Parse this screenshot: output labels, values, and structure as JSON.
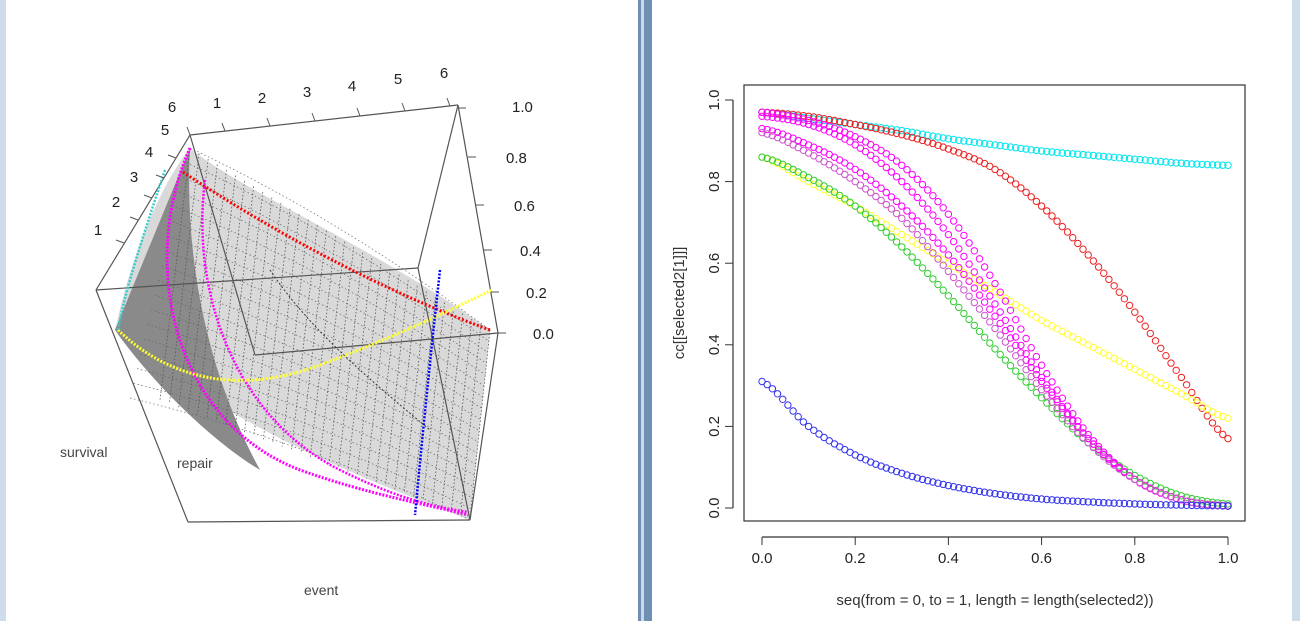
{
  "left_panel": {
    "type": "3d-surface",
    "axis_labels": {
      "survival": "survival",
      "repair": "repair",
      "event": "event"
    },
    "top_ticks": [
      "1",
      "2",
      "3",
      "4",
      "5",
      "6"
    ],
    "left_ticks": [
      "1",
      "2",
      "3",
      "4",
      "5",
      "6"
    ],
    "z_ticks": [
      "0.0",
      "0.2",
      "0.4",
      "0.6",
      "0.8",
      "1.0"
    ],
    "curve_colors": {
      "surface": "#777777",
      "red": "#ff0000",
      "magenta": "#ff00ff",
      "yellow": "#ffff33",
      "blue": "#0000ff",
      "cyan": "#33cccc"
    }
  },
  "chart_data": {
    "type": "scatter",
    "xlabel": "seq(from = 0, to = 1, length = length(selected2))",
    "ylabel": "cc[[selected2[1]]]",
    "xlim": [
      0,
      1
    ],
    "ylim": [
      0,
      1
    ],
    "x_ticks": [
      "0.0",
      "0.2",
      "0.4",
      "0.6",
      "0.8",
      "1.0"
    ],
    "y_ticks": [
      "0.0",
      "0.2",
      "0.4",
      "0.6",
      "0.8",
      "1.0"
    ],
    "marker": "open-circle",
    "series": [
      {
        "color": "#00e5ee",
        "x": [
          0,
          0.1,
          0.2,
          0.3,
          0.4,
          0.5,
          0.6,
          0.7,
          0.8,
          0.9,
          1.0
        ],
        "values": [
          0.97,
          0.955,
          0.94,
          0.925,
          0.905,
          0.89,
          0.875,
          0.865,
          0.855,
          0.845,
          0.84
        ]
      },
      {
        "color": "#ee2222",
        "x": [
          0,
          0.1,
          0.2,
          0.3,
          0.4,
          0.5,
          0.6,
          0.7,
          0.8,
          0.9,
          1.0
        ],
        "values": [
          0.97,
          0.96,
          0.94,
          0.915,
          0.88,
          0.83,
          0.74,
          0.62,
          0.48,
          0.32,
          0.17
        ]
      },
      {
        "color": "#ffff33",
        "x": [
          0,
          0.1,
          0.2,
          0.3,
          0.4,
          0.5,
          0.6,
          0.7,
          0.8,
          0.9,
          1.0
        ],
        "values": [
          0.86,
          0.8,
          0.74,
          0.67,
          0.6,
          0.53,
          0.46,
          0.4,
          0.34,
          0.28,
          0.22
        ]
      },
      {
        "color": "#33cc33",
        "x": [
          0,
          0.1,
          0.2,
          0.3,
          0.4,
          0.5,
          0.6,
          0.7,
          0.8,
          0.9,
          1.0
        ],
        "values": [
          0.86,
          0.81,
          0.74,
          0.64,
          0.52,
          0.39,
          0.27,
          0.16,
          0.08,
          0.03,
          0.01
        ]
      },
      {
        "color": "#ff00ff",
        "x": [
          0,
          0.1,
          0.2,
          0.3,
          0.4,
          0.5,
          0.6,
          0.7,
          0.8,
          0.9,
          1.0
        ],
        "values": [
          0.97,
          0.95,
          0.91,
          0.84,
          0.72,
          0.55,
          0.35,
          0.18,
          0.07,
          0.02,
          0.005
        ]
      },
      {
        "color": "#ff00ff",
        "x": [
          0,
          0.1,
          0.2,
          0.3,
          0.4,
          0.5,
          0.6,
          0.7,
          0.8,
          0.9,
          1.0
        ],
        "values": [
          0.96,
          0.94,
          0.89,
          0.8,
          0.67,
          0.5,
          0.32,
          0.17,
          0.07,
          0.02,
          0.005
        ]
      },
      {
        "color": "#ff00ff",
        "x": [
          0,
          0.1,
          0.2,
          0.3,
          0.4,
          0.5,
          0.6,
          0.7,
          0.8,
          0.9,
          1.0
        ],
        "values": [
          0.93,
          0.89,
          0.83,
          0.74,
          0.62,
          0.47,
          0.31,
          0.17,
          0.07,
          0.02,
          0.005
        ]
      },
      {
        "color": "#cc55cc",
        "x": [
          0,
          0.1,
          0.2,
          0.3,
          0.4,
          0.5,
          0.6,
          0.7,
          0.8,
          0.9,
          1.0
        ],
        "values": [
          0.92,
          0.87,
          0.8,
          0.71,
          0.58,
          0.44,
          0.29,
          0.16,
          0.07,
          0.02,
          0.005
        ]
      },
      {
        "color": "#3333ee",
        "x": [
          0,
          0.1,
          0.2,
          0.3,
          0.4,
          0.5,
          0.6,
          0.7,
          0.8,
          0.9,
          1.0
        ],
        "values": [
          0.31,
          0.2,
          0.13,
          0.085,
          0.055,
          0.035,
          0.022,
          0.015,
          0.01,
          0.007,
          0.005
        ]
      }
    ]
  }
}
